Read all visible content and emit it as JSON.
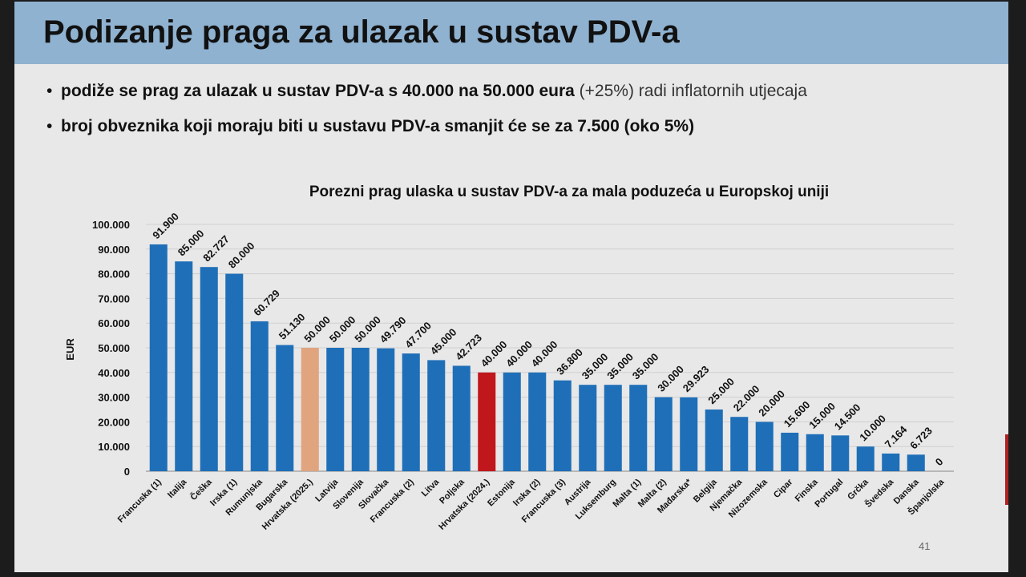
{
  "slide": {
    "title": "Podizanje praga za ulazak u sustav PDV-a",
    "bullets": [
      {
        "bold": "podiže se prag za ulazak u sustav PDV-a s 40.000 na 50.000 eura",
        "rest": " (+25%) radi inflatornih utjecaja"
      },
      {
        "bold": "broj obveznika koji moraju biti u sustavu PDV-a smanjit će se za 7.500 (oko 5%)",
        "rest": ""
      }
    ],
    "page_number": "41",
    "bullet_glyph": "•"
  },
  "chart_data": {
    "type": "bar",
    "title": "Porezni prag ulaska u sustav PDV-a za mala poduzeća u Europskoj uniji",
    "xlabel": "",
    "ylabel": "EUR",
    "ylim": [
      0,
      100000
    ],
    "yticks": [
      "0",
      "10.000",
      "20.000",
      "30.000",
      "40.000",
      "50.000",
      "60.000",
      "70.000",
      "80.000",
      "90.000",
      "100.000"
    ],
    "grid": true,
    "legend": "none",
    "colors": {
      "default": "#1f6fb8",
      "highlight_2025": "#e0a47e",
      "highlight_2024": "#c0171c"
    },
    "categories": [
      "Francuska (1)",
      "Italija",
      "Češka",
      "Irska (1)",
      "Rumunjska",
      "Bugarska",
      "Hrvatska (2025.)",
      "Latvija",
      "Slovenija",
      "Slovačka",
      "Francuska (2)",
      "Litva",
      "Poljska",
      "Hrvatska (2024.)",
      "Estonija",
      "Irska (2)",
      "Francuska (3)",
      "Austrija",
      "Luksemburg",
      "Malta (1)",
      "Malta (2)",
      "Mađarska*",
      "Belgija",
      "Njemačka",
      "Nizozemska",
      "Cipar",
      "Finska",
      "Portugal",
      "Grčka",
      "Švedska",
      "Danska",
      "Španjolska"
    ],
    "values": [
      91900,
      85000,
      82727,
      80000,
      60729,
      51130,
      50000,
      50000,
      50000,
      49790,
      47700,
      45000,
      42723,
      40000,
      40000,
      40000,
      36800,
      35000,
      35000,
      35000,
      30000,
      29923,
      25000,
      22000,
      20000,
      15600,
      15000,
      14500,
      10000,
      7164,
      6723,
      0
    ],
    "value_labels": [
      "91.900",
      "85.000",
      "82.727",
      "80.000",
      "60.729",
      "51.130",
      "50.000",
      "50.000",
      "50.000",
      "49.790",
      "47.700",
      "45.000",
      "42.723",
      "40.000",
      "40.000",
      "40.000",
      "36.800",
      "35.000",
      "35.000",
      "35.000",
      "30.000",
      "29.923",
      "25.000",
      "22.000",
      "20.000",
      "15.600",
      "15.000",
      "14.500",
      "10.000",
      "7.164",
      "6.723",
      "0"
    ],
    "bar_color_keys": [
      "default",
      "default",
      "default",
      "default",
      "default",
      "default",
      "highlight_2025",
      "default",
      "default",
      "default",
      "default",
      "default",
      "default",
      "highlight_2024",
      "default",
      "default",
      "default",
      "default",
      "default",
      "default",
      "default",
      "default",
      "default",
      "default",
      "default",
      "default",
      "default",
      "default",
      "default",
      "default",
      "default",
      "default"
    ]
  }
}
